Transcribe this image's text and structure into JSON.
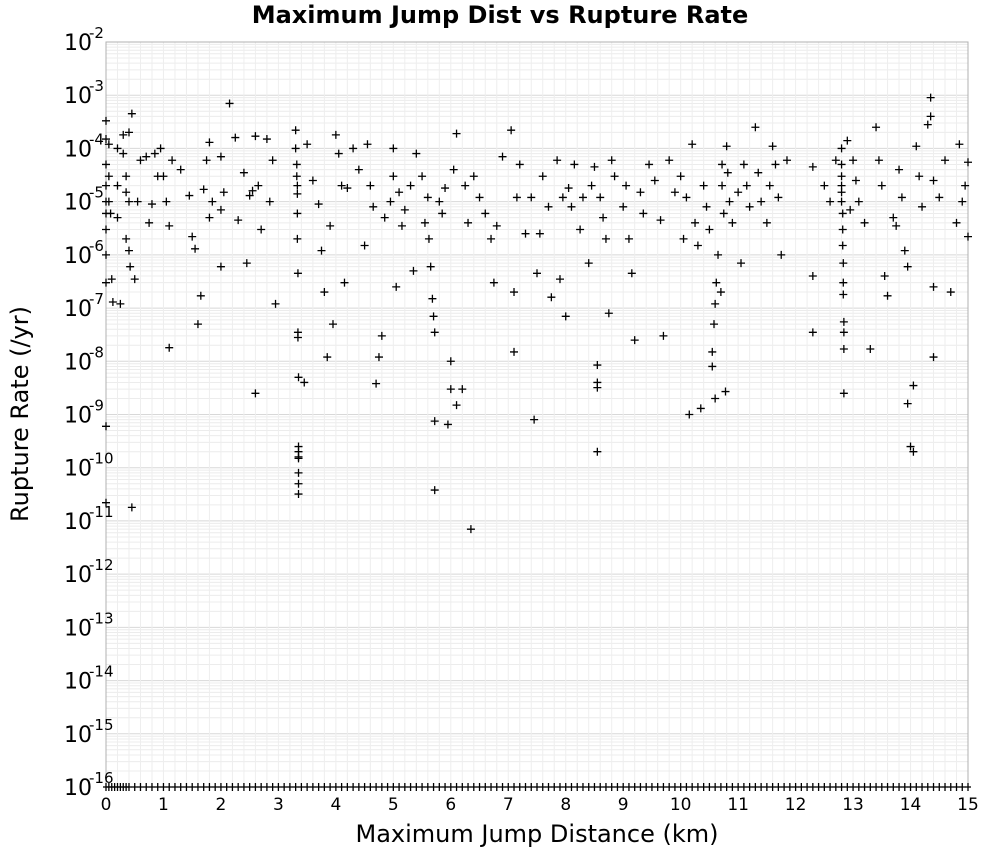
{
  "chart_data": {
    "type": "scatter",
    "title": "Maximum Jump Dist vs Rupture Rate",
    "xlabel": "Maximum Jump Distance (km)",
    "ylabel": "Rupture Rate (/yr)",
    "xlim": [
      0,
      15
    ],
    "ylim": [
      1e-16,
      0.01
    ],
    "yscale": "log",
    "grid": true,
    "marker": "+",
    "marker_color": "#000000",
    "x_ticks": [
      "0",
      "1",
      "2",
      "3",
      "4",
      "5",
      "6",
      "7",
      "8",
      "9",
      "10",
      "11",
      "12",
      "13",
      "14",
      "15"
    ],
    "y_ticks": [
      {
        "base": "10",
        "exp": "-2"
      },
      {
        "base": "10",
        "exp": "-3"
      },
      {
        "base": "10",
        "exp": "-4"
      },
      {
        "base": "10",
        "exp": "-5"
      },
      {
        "base": "10",
        "exp": "-6"
      },
      {
        "base": "10",
        "exp": "-7"
      },
      {
        "base": "10",
        "exp": "-8"
      },
      {
        "base": "10",
        "exp": "-9"
      },
      {
        "base": "10",
        "exp": "-10"
      },
      {
        "base": "10",
        "exp": "-11"
      },
      {
        "base": "10",
        "exp": "-12"
      },
      {
        "base": "10",
        "exp": "-13"
      },
      {
        "base": "10",
        "exp": "-14"
      },
      {
        "base": "10",
        "exp": "-15"
      },
      {
        "base": "10",
        "exp": "-16"
      }
    ],
    "points": [
      [
        0.0,
        0.00033
      ],
      [
        0.0,
        0.00015
      ],
      [
        0.0,
        5e-05
      ],
      [
        0.0,
        2e-05
      ],
      [
        0.0,
        1e-05
      ],
      [
        0.0,
        6e-06
      ],
      [
        0.0,
        3e-06
      ],
      [
        0.0,
        1e-06
      ],
      [
        0.0,
        3e-07
      ],
      [
        0.0,
        6e-10
      ],
      [
        0.0,
        2.2e-11
      ],
      [
        0.05,
        0.00012
      ],
      [
        0.05,
        3e-05
      ],
      [
        0.05,
        1e-05
      ],
      [
        0.08,
        6e-06
      ],
      [
        0.1,
        3.5e-07
      ],
      [
        0.12,
        1.3e-07
      ],
      [
        0.2,
        0.0001
      ],
      [
        0.2,
        2e-05
      ],
      [
        0.2,
        5e-06
      ],
      [
        0.25,
        1.2e-07
      ],
      [
        0.3,
        0.00018
      ],
      [
        0.3,
        8e-05
      ],
      [
        0.35,
        3e-05
      ],
      [
        0.35,
        1.5e-05
      ],
      [
        0.35,
        2e-06
      ],
      [
        0.4,
        0.0002
      ],
      [
        0.4,
        1e-05
      ],
      [
        0.4,
        1.2e-06
      ],
      [
        0.42,
        6e-07
      ],
      [
        0.45,
        0.00045
      ],
      [
        0.45,
        1.8e-11
      ],
      [
        0.5,
        3.5e-07
      ],
      [
        0.55,
        1e-05
      ],
      [
        0.6,
        6e-05
      ],
      [
        0.7,
        7e-05
      ],
      [
        0.75,
        4e-06
      ],
      [
        0.8,
        9e-06
      ],
      [
        0.85,
        8e-05
      ],
      [
        0.9,
        3e-05
      ],
      [
        0.95,
        0.0001
      ],
      [
        1.0,
        3e-05
      ],
      [
        1.05,
        1e-05
      ],
      [
        1.1,
        3.5e-06
      ],
      [
        1.1,
        1.8e-08
      ],
      [
        1.15,
        6e-05
      ],
      [
        1.3,
        4e-05
      ],
      [
        1.45,
        1.3e-05
      ],
      [
        1.5,
        2.2e-06
      ],
      [
        1.55,
        1.3e-06
      ],
      [
        1.6,
        5e-08
      ],
      [
        1.65,
        1.7e-07
      ],
      [
        1.7,
        1.7e-05
      ],
      [
        1.75,
        6e-05
      ],
      [
        1.8,
        0.00013
      ],
      [
        1.8,
        5e-06
      ],
      [
        1.85,
        1e-05
      ],
      [
        2.0,
        7e-05
      ],
      [
        2.0,
        7e-06
      ],
      [
        2.0,
        6e-07
      ],
      [
        2.05,
        1.5e-05
      ],
      [
        2.15,
        0.0007
      ],
      [
        2.25,
        0.00016
      ],
      [
        2.3,
        4.5e-06
      ],
      [
        2.4,
        3.5e-05
      ],
      [
        2.45,
        7e-07
      ],
      [
        2.5,
        1.3e-05
      ],
      [
        2.55,
        1.6e-05
      ],
      [
        2.6,
        0.00017
      ],
      [
        2.6,
        2.5e-09
      ],
      [
        2.65,
        2e-05
      ],
      [
        2.7,
        3e-06
      ],
      [
        2.8,
        0.00015
      ],
      [
        2.85,
        1e-05
      ],
      [
        2.9,
        6e-05
      ],
      [
        2.95,
        1.2e-07
      ],
      [
        3.3,
        0.00022
      ],
      [
        3.3,
        0.0001
      ],
      [
        3.32,
        5e-05
      ],
      [
        3.32,
        3e-05
      ],
      [
        3.33,
        2e-05
      ],
      [
        3.33,
        1.4e-05
      ],
      [
        3.33,
        6e-06
      ],
      [
        3.33,
        2e-06
      ],
      [
        3.34,
        4.5e-07
      ],
      [
        3.34,
        3.5e-08
      ],
      [
        3.34,
        2.8e-08
      ],
      [
        3.35,
        5e-09
      ],
      [
        3.35,
        2.5e-10
      ],
      [
        3.35,
        2e-10
      ],
      [
        3.35,
        1.6e-10
      ],
      [
        3.35,
        1.5e-10
      ],
      [
        3.35,
        8e-11
      ],
      [
        3.35,
        5e-11
      ],
      [
        3.35,
        3.2e-11
      ],
      [
        3.45,
        4e-09
      ],
      [
        3.5,
        0.00012
      ],
      [
        3.6,
        2.5e-05
      ],
      [
        3.7,
        9e-06
      ],
      [
        3.75,
        1.2e-06
      ],
      [
        3.8,
        2e-07
      ],
      [
        3.85,
        1.2e-08
      ],
      [
        3.9,
        3.5e-06
      ],
      [
        3.95,
        5e-08
      ],
      [
        4.0,
        0.00018
      ],
      [
        4.05,
        8e-05
      ],
      [
        4.1,
        2e-05
      ],
      [
        4.15,
        3e-07
      ],
      [
        4.2,
        1.8e-05
      ],
      [
        4.3,
        0.0001
      ],
      [
        4.4,
        4e-05
      ],
      [
        4.5,
        1.5e-06
      ],
      [
        4.55,
        0.00012
      ],
      [
        4.6,
        2e-05
      ],
      [
        4.65,
        8e-06
      ],
      [
        4.7,
        3.8e-09
      ],
      [
        4.75,
        1.2e-08
      ],
      [
        4.8,
        3e-08
      ],
      [
        4.85,
        5e-06
      ],
      [
        4.95,
        1e-05
      ],
      [
        5.0,
        0.0001
      ],
      [
        5.0,
        3e-05
      ],
      [
        5.05,
        2.5e-07
      ],
      [
        5.1,
        1.5e-05
      ],
      [
        5.15,
        3.5e-06
      ],
      [
        5.2,
        7e-06
      ],
      [
        5.3,
        2e-05
      ],
      [
        5.35,
        5e-07
      ],
      [
        5.4,
        8e-05
      ],
      [
        5.5,
        3e-05
      ],
      [
        5.55,
        4e-06
      ],
      [
        5.6,
        1.2e-05
      ],
      [
        5.62,
        2e-06
      ],
      [
        5.65,
        6e-07
      ],
      [
        5.68,
        1.5e-07
      ],
      [
        5.7,
        7e-08
      ],
      [
        5.72,
        3.5e-08
      ],
      [
        5.72,
        7.5e-10
      ],
      [
        5.72,
        3.8e-11
      ],
      [
        5.8,
        1e-05
      ],
      [
        5.85,
        6e-06
      ],
      [
        5.9,
        1.8e-05
      ],
      [
        5.95,
        6.5e-10
      ],
      [
        6.0,
        3e-09
      ],
      [
        6.0,
        1e-08
      ],
      [
        6.05,
        4e-05
      ],
      [
        6.1,
        1.5e-09
      ],
      [
        6.1,
        0.00019
      ],
      [
        6.2,
        3e-09
      ],
      [
        6.25,
        2e-05
      ],
      [
        6.3,
        4e-06
      ],
      [
        6.35,
        7e-12
      ],
      [
        6.4,
        3e-05
      ],
      [
        6.5,
        1.2e-05
      ],
      [
        6.6,
        6e-06
      ],
      [
        6.7,
        2e-06
      ],
      [
        6.75,
        3e-07
      ],
      [
        6.8,
        3.5e-06
      ],
      [
        6.9,
        7e-05
      ],
      [
        7.05,
        0.00022
      ],
      [
        7.1,
        1.5e-08
      ],
      [
        7.1,
        2e-07
      ],
      [
        7.15,
        1.2e-05
      ],
      [
        7.2,
        5e-05
      ],
      [
        7.3,
        2.5e-06
      ],
      [
        7.4,
        1.2e-05
      ],
      [
        7.45,
        8e-10
      ],
      [
        7.5,
        4.5e-07
      ],
      [
        7.55,
        2.5e-06
      ],
      [
        7.6,
        3e-05
      ],
      [
        7.7,
        8e-06
      ],
      [
        7.75,
        1.6e-07
      ],
      [
        7.85,
        6e-05
      ],
      [
        7.9,
        3.5e-07
      ],
      [
        7.95,
        1.2e-05
      ],
      [
        8.0,
        7e-08
      ],
      [
        8.05,
        1.8e-05
      ],
      [
        8.1,
        8e-06
      ],
      [
        8.15,
        5e-05
      ],
      [
        8.25,
        3e-06
      ],
      [
        8.3,
        1.2e-05
      ],
      [
        8.4,
        7e-07
      ],
      [
        8.45,
        2e-05
      ],
      [
        8.5,
        4.5e-05
      ],
      [
        8.55,
        8.5e-09
      ],
      [
        8.55,
        4e-09
      ],
      [
        8.55,
        3.2e-09
      ],
      [
        8.55,
        2e-10
      ],
      [
        8.6,
        1.2e-05
      ],
      [
        8.65,
        5e-06
      ],
      [
        8.7,
        2e-06
      ],
      [
        8.75,
        8e-08
      ],
      [
        8.8,
        6e-05
      ],
      [
        8.85,
        3e-05
      ],
      [
        9.0,
        8e-06
      ],
      [
        9.05,
        2e-05
      ],
      [
        9.1,
        2e-06
      ],
      [
        9.15,
        4.5e-07
      ],
      [
        9.2,
        2.5e-08
      ],
      [
        9.3,
        1.5e-05
      ],
      [
        9.35,
        6e-06
      ],
      [
        9.45,
        5e-05
      ],
      [
        9.55,
        2.5e-05
      ],
      [
        9.65,
        4.5e-06
      ],
      [
        9.7,
        3e-08
      ],
      [
        9.8,
        6e-05
      ],
      [
        9.9,
        1.5e-05
      ],
      [
        10.0,
        3e-05
      ],
      [
        10.05,
        2e-06
      ],
      [
        10.1,
        1.2e-05
      ],
      [
        10.15,
        1e-09
      ],
      [
        10.2,
        0.00012
      ],
      [
        10.25,
        4e-06
      ],
      [
        10.3,
        1.5e-06
      ],
      [
        10.35,
        1.3e-09
      ],
      [
        10.4,
        2e-05
      ],
      [
        10.45,
        8e-06
      ],
      [
        10.5,
        3e-06
      ],
      [
        10.55,
        1.5e-08
      ],
      [
        10.55,
        8e-09
      ],
      [
        10.58,
        5e-08
      ],
      [
        10.6,
        2e-09
      ],
      [
        10.6,
        1.2e-07
      ],
      [
        10.62,
        3e-07
      ],
      [
        10.65,
        1e-06
      ],
      [
        10.7,
        2e-07
      ],
      [
        10.72,
        5e-05
      ],
      [
        10.72,
        2e-05
      ],
      [
        10.75,
        6e-06
      ],
      [
        10.78,
        2.7e-09
      ],
      [
        10.8,
        0.00011
      ],
      [
        10.82,
        3.5e-05
      ],
      [
        10.85,
        1e-05
      ],
      [
        10.9,
        4e-06
      ],
      [
        11.0,
        1.5e-05
      ],
      [
        11.05,
        7e-07
      ],
      [
        11.1,
        5e-05
      ],
      [
        11.15,
        2e-05
      ],
      [
        11.2,
        8e-06
      ],
      [
        11.3,
        0.00025
      ],
      [
        11.35,
        3.5e-05
      ],
      [
        11.4,
        1e-05
      ],
      [
        11.5,
        4e-06
      ],
      [
        11.55,
        2e-05
      ],
      [
        11.6,
        0.00011
      ],
      [
        11.65,
        5e-05
      ],
      [
        11.7,
        1.2e-05
      ],
      [
        11.75,
        1e-06
      ],
      [
        11.85,
        6e-05
      ],
      [
        12.3,
        4.5e-05
      ],
      [
        12.3,
        4e-07
      ],
      [
        12.3,
        3.5e-08
      ],
      [
        12.5,
        2e-05
      ],
      [
        12.6,
        1e-05
      ],
      [
        12.7,
        6e-05
      ],
      [
        12.8,
        0.0001
      ],
      [
        12.8,
        5e-05
      ],
      [
        12.8,
        3e-05
      ],
      [
        12.8,
        2e-05
      ],
      [
        12.8,
        1.5e-05
      ],
      [
        12.8,
        1e-05
      ],
      [
        12.82,
        6e-06
      ],
      [
        12.82,
        3e-06
      ],
      [
        12.82,
        1.5e-06
      ],
      [
        12.83,
        7e-07
      ],
      [
        12.83,
        3e-07
      ],
      [
        12.83,
        1.8e-07
      ],
      [
        12.84,
        5.5e-08
      ],
      [
        12.84,
        3.5e-08
      ],
      [
        12.84,
        1.7e-08
      ],
      [
        12.84,
        2.5e-09
      ],
      [
        12.9,
        0.00014
      ],
      [
        12.95,
        7e-06
      ],
      [
        13.0,
        6e-05
      ],
      [
        13.05,
        2.5e-05
      ],
      [
        13.1,
        1e-05
      ],
      [
        13.2,
        4e-06
      ],
      [
        13.3,
        1.7e-08
      ],
      [
        13.4,
        0.00025
      ],
      [
        13.45,
        6e-05
      ],
      [
        13.5,
        2e-05
      ],
      [
        13.55,
        4e-07
      ],
      [
        13.6,
        1.7e-07
      ],
      [
        13.7,
        5e-06
      ],
      [
        13.75,
        3.5e-06
      ],
      [
        13.8,
        4e-05
      ],
      [
        13.85,
        1.2e-05
      ],
      [
        13.9,
        1.2e-06
      ],
      [
        13.95,
        6e-07
      ],
      [
        13.95,
        1.6e-09
      ],
      [
        14.0,
        2.5e-10
      ],
      [
        14.05,
        2e-10
      ],
      [
        14.05,
        3.5e-09
      ],
      [
        14.1,
        0.00011
      ],
      [
        14.15,
        3e-05
      ],
      [
        14.2,
        8e-06
      ],
      [
        14.3,
        0.00028
      ],
      [
        14.35,
        0.0009
      ],
      [
        14.35,
        0.0004
      ],
      [
        14.4,
        2.5e-05
      ],
      [
        14.4,
        2.5e-07
      ],
      [
        14.4,
        1.2e-08
      ],
      [
        14.5,
        1.2e-05
      ],
      [
        14.6,
        6e-05
      ],
      [
        14.7,
        2e-07
      ],
      [
        14.8,
        4e-06
      ],
      [
        14.85,
        0.00012
      ],
      [
        14.9,
        1e-05
      ],
      [
        14.95,
        2e-05
      ],
      [
        15.0,
        2.2e-06
      ],
      [
        15.0,
        5.5e-05
      ]
    ],
    "floor_ticks_x": [
      0.0,
      0.05,
      0.1,
      0.15,
      0.2,
      0.25,
      0.3,
      0.35,
      0.4,
      0.5,
      0.6,
      0.7,
      0.8,
      0.9,
      1.0,
      1.1,
      1.2,
      1.3,
      1.4,
      1.5,
      1.6,
      1.7,
      1.8,
      1.9,
      2.0,
      2.1,
      2.2,
      2.3,
      2.4,
      2.5,
      2.6,
      2.7,
      2.8,
      2.9,
      3.0,
      3.1,
      3.2,
      3.3,
      3.4,
      3.5,
      3.6,
      3.7,
      3.8,
      3.9,
      4.0,
      4.1,
      4.2,
      4.3,
      4.4,
      4.5,
      4.6,
      4.7,
      4.8,
      4.9,
      5.0,
      5.1,
      5.2,
      5.3,
      5.4,
      5.5,
      5.6,
      5.7,
      5.8,
      5.9,
      6.0,
      6.1,
      6.2,
      6.3,
      6.4,
      6.5,
      6.6,
      6.7,
      6.8,
      6.9,
      7.0,
      7.1,
      7.2,
      7.3,
      7.4,
      7.5,
      7.6,
      7.7,
      7.8,
      7.9,
      8.0,
      8.1,
      8.2,
      8.3,
      8.4,
      8.5,
      8.6,
      8.7,
      8.8,
      8.9,
      9.0,
      9.1,
      9.2,
      9.3,
      9.4,
      9.5,
      9.6,
      9.7,
      9.8,
      9.9,
      10.0,
      10.1,
      10.2,
      10.3,
      10.4,
      10.5,
      10.6,
      10.7,
      10.8,
      10.9,
      11.0,
      11.1,
      11.2,
      11.3,
      11.4,
      11.5,
      11.6,
      11.7,
      11.8,
      11.9,
      12.0,
      12.1,
      12.2,
      12.3,
      12.4,
      12.5,
      12.6,
      12.7,
      12.8,
      12.9,
      13.0,
      13.1,
      13.2,
      13.3,
      13.4,
      13.5,
      13.6,
      13.7,
      13.8,
      13.9,
      14.0,
      14.1,
      14.2,
      14.3,
      14.4,
      14.5,
      14.6,
      14.7,
      14.8,
      14.9,
      15.0
    ]
  }
}
